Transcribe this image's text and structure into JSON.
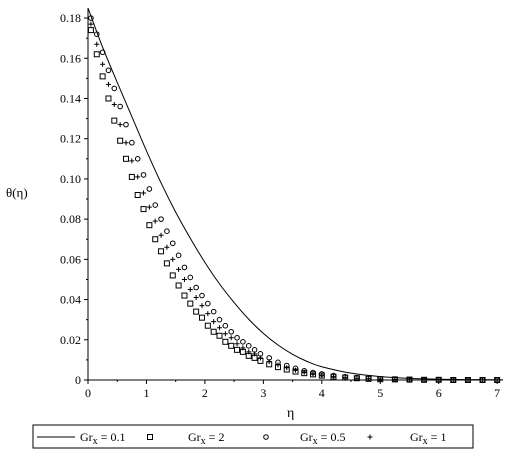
{
  "chart_data": {
    "type": "scatter",
    "title": "",
    "xlabel": "η",
    "ylabel": "θ(η)",
    "xlim": [
      0,
      7.1
    ],
    "ylim": [
      0,
      0.185
    ],
    "x_ticks": [
      "0",
      "1",
      "2",
      "3",
      "4",
      "5",
      "6",
      "7"
    ],
    "y_ticks": [
      "0",
      "0.02",
      "0.04",
      "0.06",
      "0.08",
      "0.10",
      "0.12",
      "0.14",
      "0.16",
      "0.18"
    ],
    "grid": false,
    "legend_placement": "bottom",
    "series": [
      {
        "name": "Grx = 0.1",
        "legend_base": "Gr",
        "legend_sub": "x",
        "legend_value": " = 0.1",
        "marker": "line",
        "x": [
          0,
          0.25,
          0.5,
          0.75,
          1.0,
          1.25,
          1.5,
          1.75,
          2.0,
          2.25,
          2.5,
          2.75,
          3.0,
          3.25,
          3.5,
          3.75,
          4.0,
          4.5,
          5.0,
          5.5,
          6.0,
          6.5,
          7.0,
          7.1
        ],
        "y": [
          0.185,
          0.1655,
          0.148,
          0.131,
          0.114,
          0.098,
          0.0835,
          0.0705,
          0.0585,
          0.0478,
          0.0385,
          0.0302,
          0.0232,
          0.0174,
          0.0128,
          0.0092,
          0.0066,
          0.0034,
          0.0017,
          0.0008,
          0.0004,
          0.0002,
          0.0001,
          0.0001
        ]
      },
      {
        "name": "Grx = 2",
        "legend_base": "Gr",
        "legend_sub": "x",
        "legend_value": " = 2",
        "marker": "square",
        "x": [
          0.05,
          0.15,
          0.25,
          0.35,
          0.45,
          0.55,
          0.65,
          0.75,
          0.85,
          0.95,
          1.05,
          1.15,
          1.25,
          1.35,
          1.45,
          1.55,
          1.65,
          1.75,
          1.85,
          1.95,
          2.05,
          2.15,
          2.25,
          2.35,
          2.45,
          2.55,
          2.65,
          2.75,
          2.85,
          2.95,
          3.1,
          3.25,
          3.4,
          3.55,
          3.7,
          3.85,
          4.0,
          4.2,
          4.4,
          4.6,
          4.8,
          5.0,
          5.25,
          5.5,
          5.75,
          6.0,
          6.25,
          6.5,
          6.75,
          7.0
        ],
        "y": [
          0.174,
          0.162,
          0.151,
          0.14,
          0.129,
          0.119,
          0.11,
          0.101,
          0.092,
          0.085,
          0.077,
          0.07,
          0.064,
          0.058,
          0.052,
          0.047,
          0.042,
          0.038,
          0.034,
          0.031,
          0.027,
          0.024,
          0.022,
          0.019,
          0.017,
          0.015,
          0.014,
          0.012,
          0.011,
          0.0095,
          0.0078,
          0.0064,
          0.0052,
          0.0042,
          0.0034,
          0.0028,
          0.0022,
          0.0016,
          0.0012,
          0.0009,
          0.0006,
          0.0004,
          0.0003,
          0.0002,
          0.0001,
          0.0001,
          0.0,
          0.0,
          0.0,
          0.0
        ]
      },
      {
        "name": "Grx = 0.5",
        "legend_base": "Gr",
        "legend_sub": "x",
        "legend_value": " = 0.5",
        "marker": "circle",
        "x": [
          0.05,
          0.15,
          0.25,
          0.35,
          0.45,
          0.55,
          0.65,
          0.75,
          0.85,
          0.95,
          1.05,
          1.15,
          1.25,
          1.35,
          1.45,
          1.55,
          1.65,
          1.75,
          1.85,
          1.95,
          2.05,
          2.15,
          2.25,
          2.35,
          2.45,
          2.55,
          2.65,
          2.75,
          2.85,
          2.95,
          3.1,
          3.25,
          3.4,
          3.55,
          3.7,
          3.85,
          4.0,
          4.2,
          4.4,
          4.6,
          4.8,
          5.0,
          5.25,
          5.5,
          5.75,
          6.0,
          6.25,
          6.5,
          6.75,
          7.0
        ],
        "y": [
          0.18,
          0.172,
          0.163,
          0.154,
          0.145,
          0.136,
          0.127,
          0.118,
          0.11,
          0.102,
          0.095,
          0.087,
          0.08,
          0.074,
          0.068,
          0.062,
          0.056,
          0.051,
          0.046,
          0.042,
          0.038,
          0.034,
          0.03,
          0.027,
          0.024,
          0.021,
          0.019,
          0.017,
          0.015,
          0.013,
          0.011,
          0.0088,
          0.0072,
          0.0058,
          0.0046,
          0.0037,
          0.003,
          0.0022,
          0.0016,
          0.0011,
          0.0008,
          0.0006,
          0.0004,
          0.0002,
          0.0001,
          0.0001,
          0.0,
          0.0,
          0.0,
          0.0
        ]
      },
      {
        "name": "Grx = 1",
        "legend_base": "Gr",
        "legend_sub": "x",
        "legend_value": " = 1",
        "marker": "plus",
        "x": [
          0.05,
          0.15,
          0.25,
          0.35,
          0.45,
          0.55,
          0.65,
          0.75,
          0.85,
          0.95,
          1.05,
          1.15,
          1.25,
          1.35,
          1.45,
          1.55,
          1.65,
          1.75,
          1.85,
          1.95,
          2.05,
          2.15,
          2.25,
          2.35,
          2.45,
          2.55,
          2.65,
          2.75,
          2.85,
          2.95,
          3.1,
          3.25,
          3.4,
          3.55,
          3.7,
          3.85,
          4.0,
          4.2,
          4.4,
          4.6,
          4.8,
          5.0,
          5.25,
          5.5,
          5.75,
          6.0,
          6.25,
          6.5,
          6.75,
          7.0
        ],
        "y": [
          0.177,
          0.167,
          0.157,
          0.147,
          0.137,
          0.127,
          0.118,
          0.109,
          0.101,
          0.093,
          0.086,
          0.079,
          0.072,
          0.066,
          0.06,
          0.055,
          0.05,
          0.045,
          0.041,
          0.037,
          0.033,
          0.029,
          0.026,
          0.023,
          0.021,
          0.018,
          0.016,
          0.014,
          0.013,
          0.011,
          0.0092,
          0.0075,
          0.0061,
          0.0049,
          0.0039,
          0.0031,
          0.0025,
          0.0018,
          0.0013,
          0.0009,
          0.0007,
          0.0005,
          0.0003,
          0.0002,
          0.0001,
          0.0001,
          0.0,
          0.0,
          0.0,
          0.0
        ]
      }
    ]
  }
}
